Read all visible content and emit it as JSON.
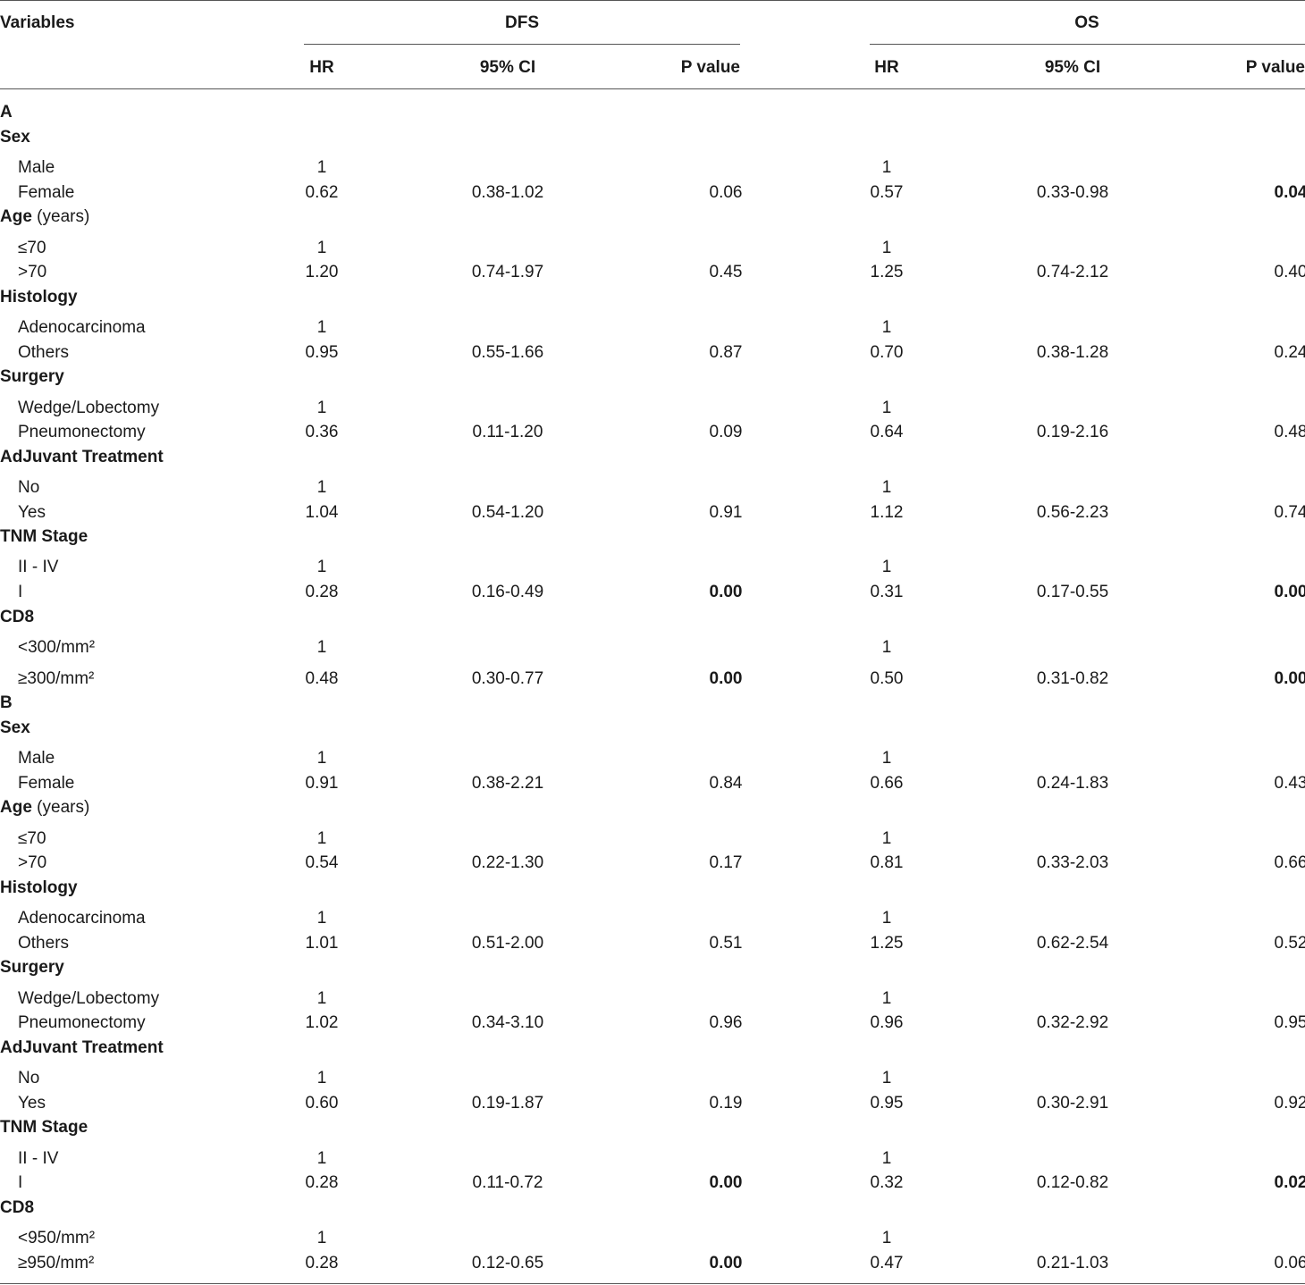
{
  "header": {
    "variables": "Variables",
    "dfs": "DFS",
    "os": "OS",
    "hr": "HR",
    "ci": "95% CI",
    "p": "P value"
  },
  "rows": [
    {
      "type": "section",
      "label": "A"
    },
    {
      "type": "group",
      "label": "Sex"
    },
    {
      "type": "data",
      "label": "Male",
      "dfs_hr": "1",
      "dfs_ci": "",
      "dfs_p": "",
      "os_hr": "1",
      "os_ci": "",
      "os_p": ""
    },
    {
      "type": "data",
      "label": "Female",
      "dfs_hr": "0.62",
      "dfs_ci": "0.38-1.02",
      "dfs_p": "0.06",
      "os_hr": "0.57",
      "os_ci": "0.33-0.98",
      "os_p": "0.04",
      "os_bold": true
    },
    {
      "type": "group",
      "label": "Age",
      "suffix": " (years)"
    },
    {
      "type": "data",
      "label": "≤70",
      "dfs_hr": "1",
      "dfs_ci": "",
      "dfs_p": "",
      "os_hr": "1",
      "os_ci": "",
      "os_p": ""
    },
    {
      "type": "data",
      "label": ">70",
      "dfs_hr": "1.20",
      "dfs_ci": "0.74-1.97",
      "dfs_p": "0.45",
      "os_hr": "1.25",
      "os_ci": "0.74-2.12",
      "os_p": "0.40"
    },
    {
      "type": "group",
      "label": "Histology"
    },
    {
      "type": "data",
      "label": "Adenocarcinoma",
      "dfs_hr": "1",
      "dfs_ci": "",
      "dfs_p": "",
      "os_hr": "1",
      "os_ci": "",
      "os_p": ""
    },
    {
      "type": "data",
      "label": "Others",
      "dfs_hr": "0.95",
      "dfs_ci": "0.55-1.66",
      "dfs_p": "0.87",
      "os_hr": "0.70",
      "os_ci": "0.38-1.28",
      "os_p": "0.24"
    },
    {
      "type": "group",
      "label": "Surgery"
    },
    {
      "type": "data",
      "label": "Wedge/Lobectomy",
      "dfs_hr": "1",
      "dfs_ci": "",
      "dfs_p": "",
      "os_hr": "1",
      "os_ci": "",
      "os_p": ""
    },
    {
      "type": "data",
      "label": "Pneumonectomy",
      "dfs_hr": "0.36",
      "dfs_ci": "0.11-1.20",
      "dfs_p": "0.09",
      "os_hr": "0.64",
      "os_ci": "0.19-2.16",
      "os_p": "0.48"
    },
    {
      "type": "group",
      "label": "AdJuvant Treatment"
    },
    {
      "type": "data",
      "label": "No",
      "dfs_hr": "1",
      "dfs_ci": "",
      "dfs_p": "",
      "os_hr": "1",
      "os_ci": "",
      "os_p": ""
    },
    {
      "type": "data",
      "label": "Yes",
      "dfs_hr": "1.04",
      "dfs_ci": "0.54-1.20",
      "dfs_p": "0.91",
      "os_hr": "1.12",
      "os_ci": "0.56-2.23",
      "os_p": "0.74"
    },
    {
      "type": "group",
      "label": "TNM Stage"
    },
    {
      "type": "data",
      "label": "II - IV",
      "dfs_hr": "1",
      "dfs_ci": "",
      "dfs_p": "",
      "os_hr": "1",
      "os_ci": "",
      "os_p": ""
    },
    {
      "type": "data",
      "label": "I",
      "dfs_hr": "0.28",
      "dfs_ci": "0.16-0.49",
      "dfs_p": "0.00",
      "dfs_bold": true,
      "os_hr": "0.31",
      "os_ci": "0.17-0.55",
      "os_p": "0.00",
      "os_bold": true
    },
    {
      "type": "group",
      "label": "CD8"
    },
    {
      "type": "data",
      "label": "<300/mm²",
      "dfs_hr": "1",
      "dfs_ci": "",
      "dfs_p": "",
      "os_hr": "1",
      "os_ci": "",
      "os_p": ""
    },
    {
      "type": "data",
      "label": "≥300/mm²",
      "dfs_hr": "0.48",
      "dfs_ci": "0.30-0.77",
      "dfs_p": "0.00",
      "dfs_bold": true,
      "os_hr": "0.50",
      "os_ci": "0.31-0.82",
      "os_p": "0.00",
      "os_bold": true
    },
    {
      "type": "section",
      "label": "B"
    },
    {
      "type": "group",
      "label": "Sex"
    },
    {
      "type": "data",
      "label": "Male",
      "dfs_hr": "1",
      "dfs_ci": "",
      "dfs_p": "",
      "os_hr": "1",
      "os_ci": "",
      "os_p": ""
    },
    {
      "type": "data",
      "label": "Female",
      "dfs_hr": "0.91",
      "dfs_ci": "0.38-2.21",
      "dfs_p": "0.84",
      "os_hr": "0.66",
      "os_ci": "0.24-1.83",
      "os_p": "0.43"
    },
    {
      "type": "group",
      "label": "Age",
      "suffix": " (years)"
    },
    {
      "type": "data",
      "label": "≤70",
      "dfs_hr": "1",
      "dfs_ci": "",
      "dfs_p": "",
      "os_hr": "1",
      "os_ci": "",
      "os_p": ""
    },
    {
      "type": "data",
      "label": ">70",
      "dfs_hr": "0.54",
      "dfs_ci": "0.22-1.30",
      "dfs_p": "0.17",
      "os_hr": "0.81",
      "os_ci": "0.33-2.03",
      "os_p": "0.66"
    },
    {
      "type": "group",
      "label": "Histology"
    },
    {
      "type": "data",
      "label": "Adenocarcinoma",
      "dfs_hr": "1",
      "dfs_ci": "",
      "dfs_p": "",
      "os_hr": "1",
      "os_ci": "",
      "os_p": ""
    },
    {
      "type": "data",
      "label": "Others",
      "dfs_hr": "1.01",
      "dfs_ci": "0.51-2.00",
      "dfs_p": "0.51",
      "os_hr": "1.25",
      "os_ci": "0.62-2.54",
      "os_p": "0.52"
    },
    {
      "type": "group",
      "label": "Surgery"
    },
    {
      "type": "data",
      "label": "Wedge/Lobectomy",
      "dfs_hr": "1",
      "dfs_ci": "",
      "dfs_p": "",
      "os_hr": "1",
      "os_ci": "",
      "os_p": ""
    },
    {
      "type": "data",
      "label": "Pneumonectomy",
      "dfs_hr": "1.02",
      "dfs_ci": "0.34-3.10",
      "dfs_p": "0.96",
      "os_hr": "0.96",
      "os_ci": "0.32-2.92",
      "os_p": "0.95"
    },
    {
      "type": "group",
      "label": "AdJuvant Treatment"
    },
    {
      "type": "data",
      "label": "No",
      "dfs_hr": "1",
      "dfs_ci": "",
      "dfs_p": "",
      "os_hr": "1",
      "os_ci": "",
      "os_p": ""
    },
    {
      "type": "data",
      "label": "Yes",
      "dfs_hr": "0.60",
      "dfs_ci": "0.19-1.87",
      "dfs_p": "0.19",
      "os_hr": "0.95",
      "os_ci": "0.30-2.91",
      "os_p": "0.92"
    },
    {
      "type": "group",
      "label": "TNM Stage"
    },
    {
      "type": "data",
      "label": "II - IV",
      "dfs_hr": "1",
      "dfs_ci": "",
      "dfs_p": "",
      "os_hr": "1",
      "os_ci": "",
      "os_p": ""
    },
    {
      "type": "data",
      "label": "I",
      "dfs_hr": "0.28",
      "dfs_ci": "0.11-0.72",
      "dfs_p": "0.00",
      "dfs_bold": true,
      "os_hr": "0.32",
      "os_ci": "0.12-0.82",
      "os_p": "0.02",
      "os_bold": true
    },
    {
      "type": "group",
      "label": "CD8"
    },
    {
      "type": "data",
      "label": "<950/mm²",
      "dfs_hr": "1",
      "dfs_ci": "",
      "dfs_p": "",
      "os_hr": "1",
      "os_ci": "",
      "os_p": ""
    },
    {
      "type": "data",
      "label": "≥950/mm²",
      "dfs_hr": "0.28",
      "dfs_ci": "0.12-0.65",
      "dfs_p": "0.00",
      "dfs_bold": true,
      "os_hr": "0.47",
      "os_ci": "0.21-1.03",
      "os_p": "0.06"
    }
  ]
}
